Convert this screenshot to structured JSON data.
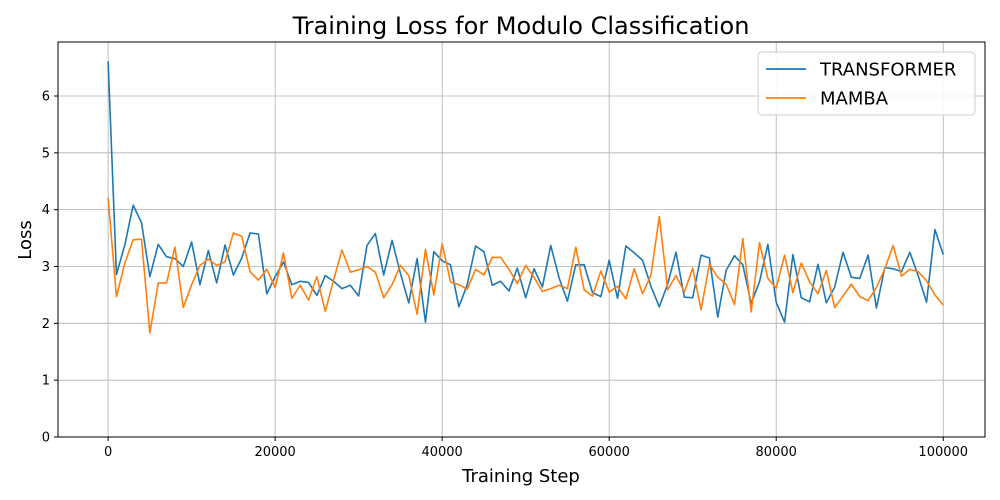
{
  "chart_data": {
    "type": "line",
    "title": "Training Loss for Modulo Classification",
    "xlabel": "Training Step",
    "ylabel": "Loss",
    "xlim": [
      -6000,
      105000
    ],
    "ylim": [
      0,
      6.95
    ],
    "xticks": [
      0,
      20000,
      40000,
      60000,
      80000,
      100000
    ],
    "yticks": [
      0,
      1,
      2,
      3,
      4,
      5,
      6
    ],
    "grid": true,
    "legend_position": "top-right",
    "x": [
      0,
      1000,
      2000,
      3000,
      4000,
      5000,
      6000,
      7000,
      8000,
      9000,
      10000,
      11000,
      12000,
      13000,
      14000,
      15000,
      16000,
      17000,
      18000,
      19000,
      20000,
      21000,
      22000,
      23000,
      24000,
      25000,
      26000,
      27000,
      28000,
      29000,
      30000,
      31000,
      32000,
      33000,
      34000,
      35000,
      36000,
      37000,
      38000,
      39000,
      40000,
      41000,
      42000,
      43000,
      44000,
      45000,
      46000,
      47000,
      48000,
      49000,
      50000,
      51000,
      52000,
      53000,
      54000,
      55000,
      56000,
      57000,
      58000,
      59000,
      60000,
      61000,
      62000,
      63000,
      64000,
      65000,
      66000,
      67000,
      68000,
      69000,
      70000,
      71000,
      72000,
      73000,
      74000,
      75000,
      76000,
      77000,
      78000,
      79000,
      80000,
      81000,
      82000,
      83000,
      84000,
      85000,
      86000,
      87000,
      88000,
      89000,
      90000,
      91000,
      92000,
      93000,
      94000,
      95000,
      96000,
      97000,
      98000,
      99000,
      100000
    ],
    "series": [
      {
        "name": "TRANSFORMER",
        "color": "#1f77b4",
        "values": [
          6.61,
          2.86,
          3.38,
          4.08,
          3.77,
          2.82,
          3.39,
          3.17,
          3.14,
          3.0,
          3.43,
          2.68,
          3.28,
          2.71,
          3.38,
          2.85,
          3.15,
          3.59,
          3.57,
          2.52,
          2.82,
          3.08,
          2.68,
          2.74,
          2.72,
          2.49,
          2.84,
          2.74,
          2.61,
          2.67,
          2.48,
          3.37,
          3.58,
          2.85,
          3.46,
          2.88,
          2.36,
          3.14,
          2.02,
          3.26,
          3.1,
          3.03,
          2.29,
          2.68,
          3.36,
          3.26,
          2.67,
          2.74,
          2.57,
          2.97,
          2.45,
          2.96,
          2.64,
          3.37,
          2.8,
          2.39,
          3.03,
          3.03,
          2.54,
          2.47,
          3.11,
          2.44,
          3.36,
          3.24,
          3.11,
          2.65,
          2.29,
          2.69,
          3.25,
          2.46,
          2.45,
          3.2,
          3.15,
          2.11,
          2.93,
          3.19,
          3.03,
          2.35,
          2.73,
          3.39,
          2.37,
          2.02,
          3.21,
          2.45,
          2.38,
          3.04,
          2.36,
          2.64,
          3.25,
          2.81,
          2.79,
          3.2,
          2.27,
          2.98,
          2.96,
          2.91,
          3.25,
          2.84,
          2.37,
          3.65,
          3.21
        ]
      },
      {
        "name": "MAMBA",
        "color": "#ff7f0e",
        "values": [
          4.21,
          2.47,
          3.06,
          3.47,
          3.48,
          1.83,
          2.71,
          2.71,
          3.34,
          2.28,
          2.68,
          3.02,
          3.13,
          3.02,
          3.08,
          3.59,
          3.53,
          2.91,
          2.76,
          2.95,
          2.63,
          3.24,
          2.44,
          2.67,
          2.41,
          2.82,
          2.21,
          2.76,
          3.29,
          2.9,
          2.94,
          3.0,
          2.9,
          2.45,
          2.68,
          3.02,
          2.84,
          2.16,
          3.3,
          2.5,
          3.4,
          2.73,
          2.68,
          2.6,
          2.95,
          2.85,
          3.16,
          3.16,
          2.95,
          2.7,
          3.02,
          2.81,
          2.56,
          2.61,
          2.67,
          2.61,
          3.34,
          2.59,
          2.48,
          2.92,
          2.55,
          2.65,
          2.43,
          2.96,
          2.52,
          2.85,
          3.88,
          2.59,
          2.84,
          2.55,
          2.97,
          2.24,
          3.04,
          2.81,
          2.69,
          2.33,
          3.49,
          2.2,
          3.42,
          2.79,
          2.62,
          3.2,
          2.54,
          3.06,
          2.73,
          2.52,
          2.93,
          2.28,
          2.48,
          2.69,
          2.47,
          2.4,
          2.63,
          2.96,
          3.37,
          2.83,
          2.95,
          2.91,
          2.75,
          2.5,
          2.32
        ]
      }
    ]
  }
}
